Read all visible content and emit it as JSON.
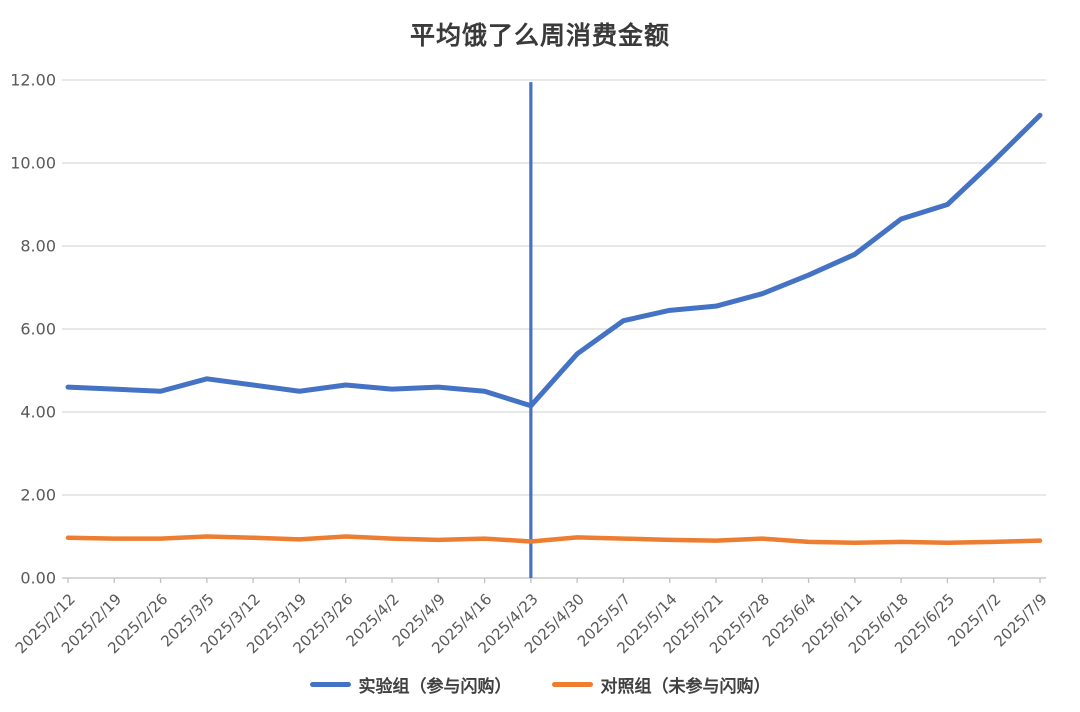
{
  "title": "平均饿了么周消费金额",
  "chart_data": {
    "type": "line",
    "title": "平均饿了么周消费金额",
    "categories": [
      "2025/2/12",
      "2025/2/19",
      "2025/2/26",
      "2025/3/5",
      "2025/3/12",
      "2025/3/19",
      "2025/3/26",
      "2025/4/2",
      "2025/4/9",
      "2025/4/16",
      "2025/4/23",
      "2025/4/30",
      "2025/5/7",
      "2025/5/14",
      "2025/5/21",
      "2025/5/28",
      "2025/6/4",
      "2025/6/11",
      "2025/6/18",
      "2025/6/25",
      "2025/7/2",
      "2025/7/9"
    ],
    "series": [
      {
        "name": "实验组（参与闪购）",
        "color": "#4472C4",
        "values": [
          4.6,
          4.55,
          4.5,
          4.8,
          4.65,
          4.5,
          4.65,
          4.55,
          4.6,
          4.5,
          4.15,
          5.4,
          6.2,
          6.45,
          6.55,
          6.85,
          7.3,
          7.8,
          8.65,
          9.0,
          10.05,
          11.15
        ]
      },
      {
        "name": "对照组（未参与闪购）",
        "color": "#ED7D31",
        "values": [
          0.97,
          0.95,
          0.95,
          1.0,
          0.97,
          0.93,
          1.0,
          0.95,
          0.92,
          0.95,
          0.88,
          0.98,
          0.95,
          0.92,
          0.9,
          0.95,
          0.87,
          0.85,
          0.87,
          0.85,
          0.87,
          0.9
        ]
      }
    ],
    "ylim": [
      0,
      12
    ],
    "ytick_step": 2,
    "ytick_labels": [
      "0.00",
      "2.00",
      "4.00",
      "6.00",
      "8.00",
      "10.00",
      "12.00"
    ],
    "grid": true,
    "legend_position": "bottom",
    "marker_line": {
      "category": "2025/4/23",
      "top_value": 11.95,
      "color": "#4472C4"
    }
  },
  "colors": {
    "gridline": "#D9D9D9",
    "axis_line": "#BFBFBF",
    "tick_label": "#595959",
    "title_text": "#3a3a3a",
    "legend_text": "#404040"
  }
}
